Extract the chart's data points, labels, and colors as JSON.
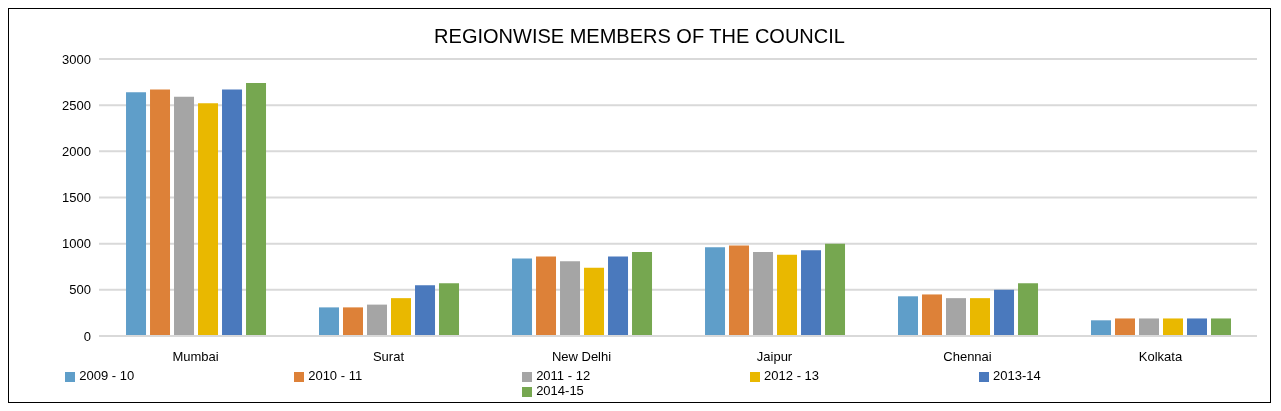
{
  "chart_data": {
    "type": "bar",
    "title": "REGIONWISE MEMBERS OF THE COUNCIL",
    "categories": [
      "Mumbai",
      "Surat",
      "New Delhi",
      "Jaipur",
      "Chennai",
      "Kolkata"
    ],
    "series": [
      {
        "name": "2009 - 10",
        "color": "#5f9ec9",
        "values": [
          2640,
          310,
          840,
          960,
          430,
          170
        ]
      },
      {
        "name": "2010 - 11",
        "color": "#dd8138",
        "values": [
          2670,
          310,
          860,
          980,
          450,
          190
        ]
      },
      {
        "name": "2011 - 12",
        "color": "#a5a5a5",
        "values": [
          2590,
          340,
          810,
          910,
          410,
          190
        ]
      },
      {
        "name": "2012 - 13",
        "color": "#e9b800",
        "values": [
          2520,
          410,
          740,
          880,
          410,
          190
        ]
      },
      {
        "name": "2013-14",
        "color": "#4a79bd",
        "values": [
          2670,
          550,
          860,
          930,
          500,
          190
        ]
      },
      {
        "name": "2014-15",
        "color": "#76a750",
        "values": [
          2740,
          570,
          910,
          1000,
          570,
          190
        ]
      }
    ],
    "ylim": [
      0,
      3000
    ],
    "yticks": [
      0,
      500,
      1000,
      1500,
      2000,
      2500,
      3000
    ],
    "grid": "y",
    "legend": "bottom"
  }
}
